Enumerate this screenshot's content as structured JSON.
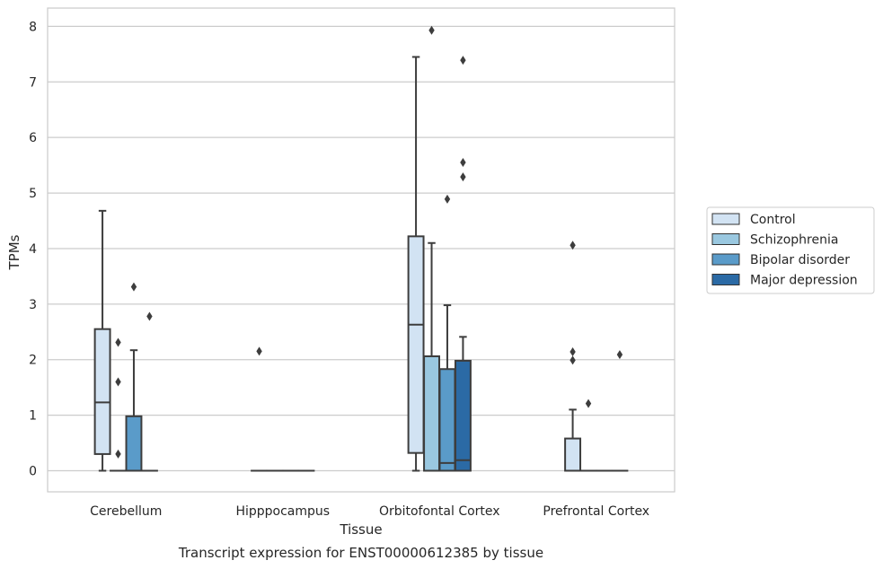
{
  "chart_data": {
    "type": "box",
    "title": "",
    "caption": "Transcript expression for ENST00000612385 by tissue",
    "xlabel": "Tissue",
    "ylabel": "TPMs",
    "ylim": [
      -0.38,
      8.33
    ],
    "yticks": [
      0,
      1,
      2,
      3,
      4,
      5,
      6,
      7,
      8
    ],
    "grid": "horizontal",
    "legend_position": "right",
    "categories": [
      "Cerebellum",
      "Hipppocampus",
      "Orbitofontal Cortex",
      "Prefrontal Cortex"
    ],
    "series": [
      {
        "name": "Control",
        "color": "#d2e3f3",
        "boxes": [
          {
            "category": "Cerebellum",
            "whisker_low": 0,
            "q1": 0.3,
            "median": 1.23,
            "q3": 2.55,
            "whisker_high": 4.68,
            "outliers": []
          },
          {
            "category": "Hipppocampus",
            "whisker_low": 0,
            "q1": 0,
            "median": 0,
            "q3": 0,
            "whisker_high": 0,
            "outliers": [
              2.15
            ]
          },
          {
            "category": "Orbitofontal Cortex",
            "whisker_low": 0,
            "q1": 0.32,
            "median": 2.63,
            "q3": 4.22,
            "whisker_high": 7.45,
            "outliers": []
          },
          {
            "category": "Prefrontal Cortex",
            "whisker_low": 0,
            "q1": 0,
            "median": 0,
            "q3": 0.58,
            "whisker_high": 1.1,
            "outliers": [
              4.06,
              2.14,
              1.99
            ]
          }
        ]
      },
      {
        "name": "Schizophrenia",
        "color": "#9ac8e0",
        "boxes": [
          {
            "category": "Cerebellum",
            "whisker_low": 0,
            "q1": 0,
            "median": 0,
            "q3": 0,
            "whisker_high": 0,
            "outliers": [
              2.31,
              1.6,
              0.3
            ]
          },
          {
            "category": "Hipppocampus",
            "whisker_low": 0,
            "q1": 0,
            "median": 0,
            "q3": 0,
            "whisker_high": 0,
            "outliers": []
          },
          {
            "category": "Orbitofontal Cortex",
            "whisker_low": 0,
            "q1": 0,
            "median": 0,
            "q3": 2.06,
            "whisker_high": 4.1,
            "outliers": [
              7.93
            ]
          },
          {
            "category": "Prefrontal Cortex",
            "whisker_low": 0,
            "q1": 0,
            "median": 0,
            "q3": 0,
            "whisker_high": 0,
            "outliers": [
              1.21
            ]
          }
        ]
      },
      {
        "name": "Bipolar disorder",
        "color": "#5a9bc9",
        "boxes": [
          {
            "category": "Cerebellum",
            "whisker_low": 0,
            "q1": 0,
            "median": 0,
            "q3": 0.98,
            "whisker_high": 2.17,
            "outliers": [
              3.31
            ]
          },
          {
            "category": "Hipppocampus",
            "whisker_low": 0,
            "q1": 0,
            "median": 0,
            "q3": 0,
            "whisker_high": 0,
            "outliers": []
          },
          {
            "category": "Orbitofontal Cortex",
            "whisker_low": 0,
            "q1": 0,
            "median": 0.14,
            "q3": 1.83,
            "whisker_high": 2.98,
            "outliers": [
              4.89
            ]
          },
          {
            "category": "Prefrontal Cortex",
            "whisker_low": 0,
            "q1": 0,
            "median": 0,
            "q3": 0,
            "whisker_high": 0,
            "outliers": []
          }
        ]
      },
      {
        "name": "Major depression",
        "color": "#2b6aa5",
        "boxes": [
          {
            "category": "Cerebellum",
            "whisker_low": 0,
            "q1": 0,
            "median": 0,
            "q3": 0,
            "whisker_high": 0,
            "outliers": [
              2.78
            ]
          },
          {
            "category": "Hipppocampus",
            "whisker_low": 0,
            "q1": 0,
            "median": 0,
            "q3": 0,
            "whisker_high": 0,
            "outliers": []
          },
          {
            "category": "Orbitofontal Cortex",
            "whisker_low": 0,
            "q1": 0,
            "median": 0.19,
            "q3": 1.98,
            "whisker_high": 2.41,
            "outliers": [
              7.39,
              5.55,
              5.29
            ]
          },
          {
            "category": "Prefrontal Cortex",
            "whisker_low": 0,
            "q1": 0,
            "median": 0,
            "q3": 0,
            "whisker_high": 0,
            "outliers": [
              2.09
            ]
          }
        ]
      }
    ]
  }
}
